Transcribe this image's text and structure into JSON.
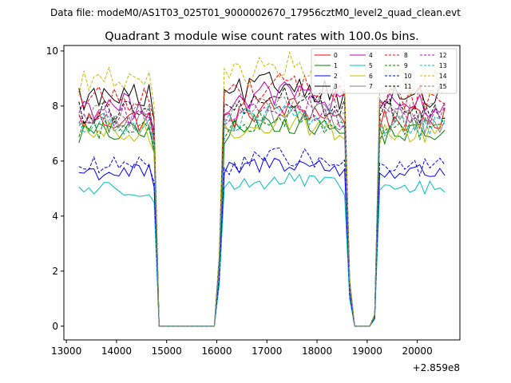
{
  "chart_data": {
    "type": "line",
    "suptitle": "Data file: modeM0/AS1T03_025T01_9000002670_17956cztM0_level2_quad_clean.evt",
    "title": "Quadrant 3 module wise count rates with 100.0s bins.",
    "xlabel": "",
    "ylabel": "",
    "x_offset_label": "+2.859e8",
    "xlim": [
      12950,
      20850
    ],
    "ylim": [
      -0.5,
      10.2
    ],
    "x_ticks": [
      13000,
      14000,
      15000,
      16000,
      17000,
      18000,
      19000,
      20000
    ],
    "y_ticks": [
      0,
      2,
      4,
      6,
      8,
      10
    ],
    "legend_position": "top-right",
    "gti": [
      [
        13250,
        14650
      ],
      [
        16150,
        18550
      ],
      [
        19250,
        20550
      ]
    ],
    "ramps": [
      {
        "x": 14750,
        "frac": 0.9
      },
      {
        "x": 14850,
        "frac": 0
      },
      {
        "x": 15950,
        "frac": 0
      },
      {
        "x": 16050,
        "frac": 0.3
      },
      {
        "x": 18650,
        "frac": 0.2
      },
      {
        "x": 18750,
        "frac": 0
      },
      {
        "x": 19050,
        "frac": 0
      },
      {
        "x": 19150,
        "frac": 0.05
      }
    ],
    "series": [
      {
        "name": "0",
        "color": "#ff0000",
        "dash": "solid",
        "level": 7.5
      },
      {
        "name": "1",
        "color": "#008000",
        "dash": "solid",
        "level": 7.0
      },
      {
        "name": "2",
        "color": "#0000ff",
        "dash": "solid",
        "level": 5.6
      },
      {
        "name": "3",
        "color": "#000000",
        "dash": "solid",
        "level": 8.3
      },
      {
        "name": "4",
        "color": "#bf00bf",
        "dash": "solid",
        "level": 8.0
      },
      {
        "name": "5",
        "color": "#00bfbf",
        "dash": "solid",
        "level": 5.0
      },
      {
        "name": "6",
        "color": "#bfbf00",
        "dash": "solid",
        "level": 7.0
      },
      {
        "name": "7",
        "color": "#808080",
        "dash": "solid",
        "level": 7.4
      },
      {
        "name": "8",
        "color": "#ff0000",
        "dash": "dashed",
        "level": 8.3
      },
      {
        "name": "9",
        "color": "#008000",
        "dash": "dashed",
        "level": 7.2
      },
      {
        "name": "10",
        "color": "#0000ff",
        "dash": "dashed",
        "level": 5.8
      },
      {
        "name": "11",
        "color": "#000000",
        "dash": "dashed",
        "level": 7.8
      },
      {
        "name": "12",
        "color": "#bf00bf",
        "dash": "dashed",
        "level": 7.6
      },
      {
        "name": "13",
        "color": "#00bfbf",
        "dash": "dashed",
        "level": 7.3
      },
      {
        "name": "14",
        "color": "#bfbf00",
        "dash": "dashed",
        "level": 8.9
      },
      {
        "name": "15",
        "color": "#808080",
        "dash": "dashed",
        "level": 7.7
      }
    ]
  }
}
